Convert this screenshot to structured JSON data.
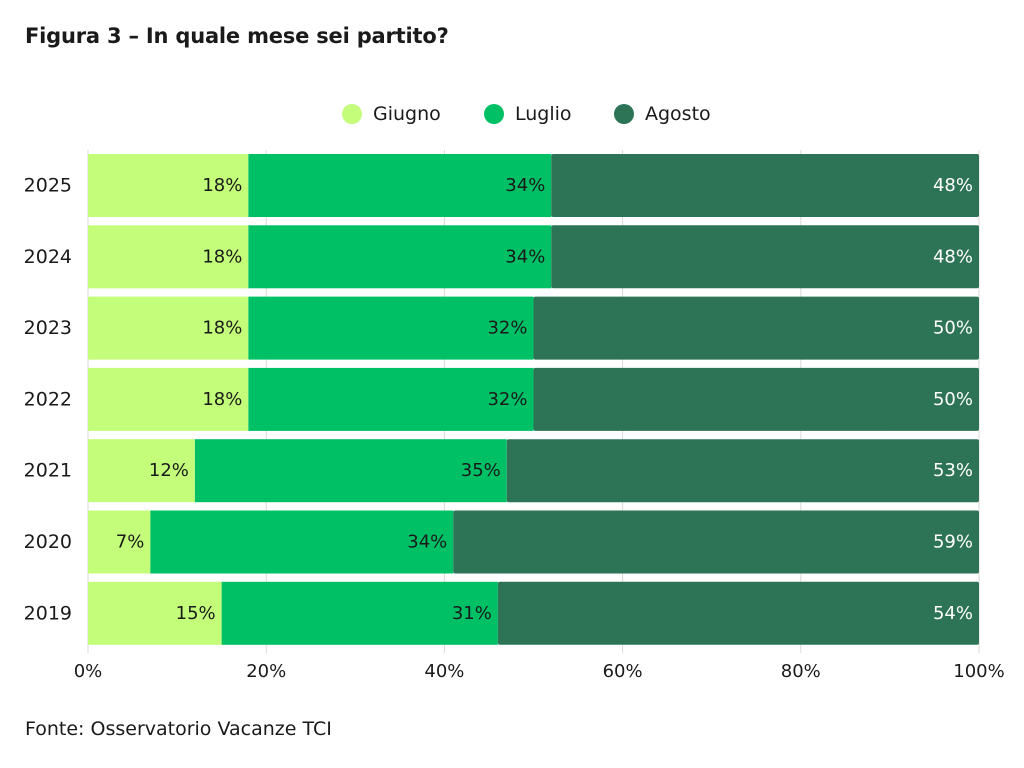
{
  "title": "Figura 3 – In quale mese sei partito?",
  "source": "Fonte: Osservatorio Vacanze TCI",
  "chart_data": {
    "type": "bar",
    "orientation": "horizontal",
    "stacked": true,
    "categories": [
      "2025",
      "2024",
      "2023",
      "2022",
      "2021",
      "2020",
      "2019"
    ],
    "series": [
      {
        "name": "Giugno",
        "color": "#c3fd7a",
        "label_color": "#1a1a1a",
        "values": [
          18,
          18,
          18,
          18,
          12,
          7,
          15
        ],
        "labels": [
          "18%",
          "18%",
          "18%",
          "18%",
          "12%",
          "7%",
          "15%"
        ]
      },
      {
        "name": "Luglio",
        "color": "#00c066",
        "label_color": "#1a1a1a",
        "values": [
          34,
          34,
          32,
          32,
          35,
          34,
          31
        ],
        "labels": [
          "34%",
          "34%",
          "32%",
          "32%",
          "35%",
          "34%",
          "31%"
        ]
      },
      {
        "name": "Agosto",
        "color": "#2d7356",
        "label_color": "#ffffff",
        "values": [
          48,
          48,
          50,
          50,
          53,
          59,
          54
        ],
        "labels": [
          "48%",
          "48%",
          "50%",
          "50%",
          "53%",
          "59%",
          "54%"
        ]
      }
    ],
    "x_ticks": [
      "0%",
      "20%",
      "40%",
      "60%",
      "80%",
      "100%"
    ],
    "xlim": [
      0,
      100
    ],
    "grid": true,
    "legend_position": "top-center"
  }
}
